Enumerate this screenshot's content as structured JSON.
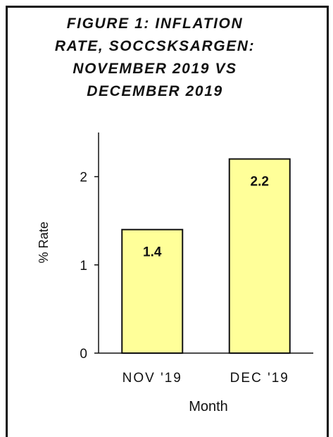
{
  "chart_data": {
    "type": "bar",
    "title": "FIGURE 1: INFLATION\nRATE, SOCCSKSARGEN:\nNOVEMBER 2019 VS\nDECEMBER 2019",
    "xlabel": "Month",
    "ylabel": "% Rate",
    "categories": [
      "NOV '19",
      "DEC '19"
    ],
    "values": [
      1.4,
      2.2
    ],
    "data_labels": [
      "1.4",
      "2.2"
    ],
    "yticks": [
      "0",
      "1",
      "2"
    ],
    "ylim": [
      0,
      2.5
    ],
    "grid": false,
    "legend": "none",
    "colors": {
      "bar_fill": "#ffff99",
      "bar_stroke": "#111111",
      "axis": "#111111"
    }
  }
}
